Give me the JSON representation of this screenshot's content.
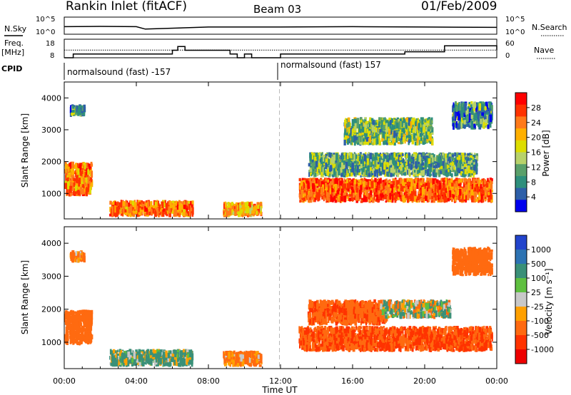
{
  "header": {
    "title": "Rankin Inlet (fitACF)",
    "beam": "Beam 03",
    "date": "01/Feb/2009"
  },
  "side_labels": {
    "nsky": "N.Sky",
    "freq": "Freq.",
    "freq_unit": "[MHz]",
    "cpid": "CPID",
    "nsearch": "N.Search",
    "nave": "Nave"
  },
  "cpid_segments": [
    {
      "label": "normalsound (fast) -157"
    },
    {
      "label": "normalsound (fast) 157"
    }
  ],
  "axes": {
    "xlabel": "Time UT",
    "ylabel": "Slant Range [km]",
    "xticks": [
      "00:00",
      "04:00",
      "08:00",
      "12:00",
      "16:00",
      "20:00",
      "00:00"
    ],
    "yticks": [
      "1000",
      "2000",
      "3000",
      "4000"
    ],
    "nsky_ticks_left": [
      "10^5",
      "10^0"
    ],
    "nsky_ticks_right": [
      "10^5",
      "10^0"
    ],
    "freq_ticks": [
      "18",
      "8"
    ],
    "nave_ticks": [
      "60",
      "0"
    ]
  },
  "colorbars": {
    "power": {
      "label": "Power [dB]",
      "ticks": [
        "28",
        "24",
        "20",
        "16",
        "12",
        "8",
        "4"
      ],
      "colors": [
        "#ff0000",
        "#ff3300",
        "#ff7a1a",
        "#ffb000",
        "#dddd00",
        "#b8d26a",
        "#5aa06a",
        "#2e8f7c",
        "#2d5fa8",
        "#0000ee"
      ]
    },
    "velocity": {
      "label": "Velocity [m s⁻¹]",
      "ticks": [
        "1000",
        "500",
        "100",
        "25",
        "-25",
        "-100",
        "-500",
        "-1000"
      ],
      "colors": [
        "#2244cc",
        "#2d73b3",
        "#3a9078",
        "#5fc040",
        "#c8c8c8",
        "#ffa000",
        "#ff6a10",
        "#ff3300",
        "#ee0000"
      ]
    }
  },
  "chart_data": [
    {
      "type": "line",
      "title": "",
      "xlabel": "Time UT",
      "ylabel": "N.Sky",
      "x": [
        0,
        2,
        4,
        4.5,
        8,
        12,
        16,
        20,
        24
      ],
      "series": [
        {
          "name": "N.Sky",
          "values": [
            2.2,
            2.3,
            2.2,
            1.5,
            2.1,
            2.1,
            2.2,
            2.1,
            2.0
          ]
        }
      ]
    },
    {
      "type": "line",
      "title": "",
      "xlabel": "Time UT",
      "ylabel": "Freq. [MHz]",
      "x": [
        0,
        0.5,
        4.5,
        6.0,
        6.3,
        6.7,
        9.2,
        9.6,
        10.0,
        10.4,
        12.0,
        18.9,
        21.1,
        24
      ],
      "series": [
        {
          "name": "Freq.",
          "values": [
            8,
            10.5,
            10.5,
            13,
            15.5,
            13,
            10.5,
            8,
            10.5,
            8,
            10.5,
            12,
            16,
            13
          ]
        },
        {
          "name": "Nave",
          "values": [
            25,
            25,
            25,
            25,
            25,
            25,
            25,
            25,
            25,
            25,
            25,
            25,
            25,
            25
          ]
        }
      ]
    },
    {
      "type": "heatmap",
      "title": "",
      "xlabel": "Time UT",
      "ylabel": "Slant Range [km]",
      "colorbar_label": "Power [dB]",
      "xlim": [
        0,
        24
      ],
      "ylim": [
        200,
        4500
      ],
      "regions": [
        {
          "t0": 0.0,
          "t1": 1.6,
          "r0": 900,
          "r1": 2000,
          "value": 24
        },
        {
          "t0": 0.3,
          "t1": 1.2,
          "r0": 3400,
          "r1": 3800,
          "value": 8
        },
        {
          "t0": 2.5,
          "t1": 7.2,
          "r0": 250,
          "r1": 800,
          "value": 24
        },
        {
          "t0": 8.8,
          "t1": 11.0,
          "r0": 250,
          "r1": 750,
          "value": 20
        },
        {
          "t0": 13.0,
          "t1": 23.8,
          "r0": 700,
          "r1": 1500,
          "value": 26
        },
        {
          "t0": 13.5,
          "t1": 23.0,
          "r0": 1500,
          "r1": 2300,
          "value": 10
        },
        {
          "t0": 15.5,
          "t1": 20.5,
          "r0": 2500,
          "r1": 3400,
          "value": 12
        },
        {
          "t0": 21.5,
          "t1": 23.8,
          "r0": 3000,
          "r1": 3900,
          "value": 8
        }
      ]
    },
    {
      "type": "heatmap",
      "title": "",
      "xlabel": "Time UT",
      "ylabel": "Slant Range [km]",
      "colorbar_label": "Velocity [m s-1]",
      "xlim": [
        0,
        24
      ],
      "ylim": [
        200,
        4500
      ],
      "regions": [
        {
          "t0": 0.0,
          "t1": 1.6,
          "r0": 900,
          "r1": 2000,
          "value": -300
        },
        {
          "t0": 0.3,
          "t1": 1.2,
          "r0": 3400,
          "r1": 3800,
          "value": -200
        },
        {
          "t0": 2.5,
          "t1": 7.2,
          "r0": 250,
          "r1": 800,
          "value": 100
        },
        {
          "t0": 8.8,
          "t1": 11.0,
          "r0": 250,
          "r1": 750,
          "value": -200
        },
        {
          "t0": 13.0,
          "t1": 23.8,
          "r0": 700,
          "r1": 1500,
          "value": -500
        },
        {
          "t0": 13.5,
          "t1": 18.0,
          "r0": 1500,
          "r1": 2300,
          "value": -400
        },
        {
          "t0": 17.5,
          "t1": 21.5,
          "r0": 1700,
          "r1": 2300,
          "value": 0
        },
        {
          "t0": 21.5,
          "t1": 23.8,
          "r0": 3000,
          "r1": 3900,
          "value": -300
        }
      ]
    }
  ]
}
